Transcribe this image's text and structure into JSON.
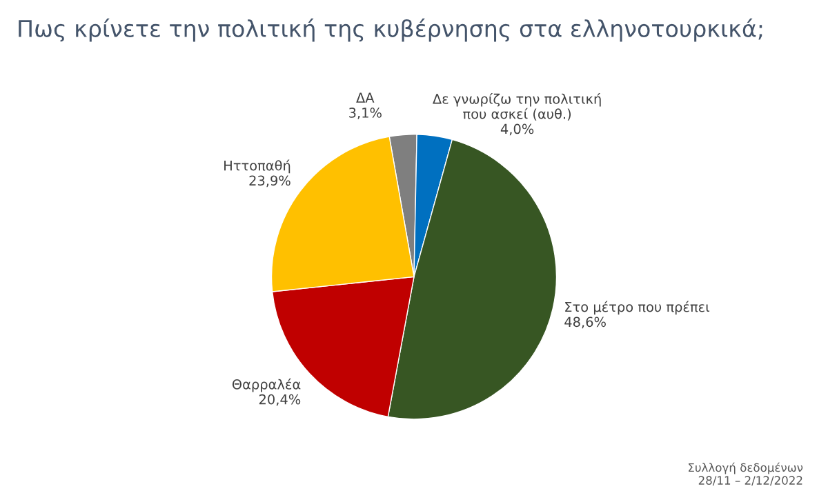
{
  "chart_data": {
    "type": "pie",
    "title": "Πως κρίνετε την πολιτική της κυβέρνησης στα ελληνοτουρκικά;",
    "categories": [
      "ΔΑ",
      "Δε γνωρίζω την πολιτική\nπου ασκεί (αυθ.)",
      "Στο μέτρο που πρέπει",
      "Θαρραλέα",
      "Ηττοπαθή"
    ],
    "values": [
      3.1,
      4.0,
      48.6,
      20.4,
      23.9
    ],
    "value_labels": [
      "3,1%",
      "4,0%",
      "48,6%",
      "20,4%",
      "23,9%"
    ],
    "colors": [
      "#7f7f7f",
      "#0070c0",
      "#375623",
      "#c00000",
      "#ffc000"
    ],
    "annotations": [
      "Συλλογή δεδομένων\n28/11 – 2/12/2022"
    ]
  }
}
